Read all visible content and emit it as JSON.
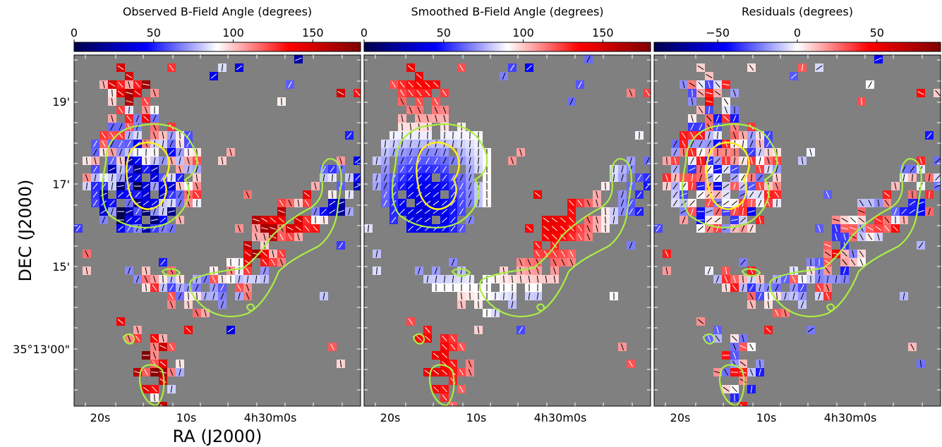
{
  "figure": {
    "y_axis_title": "DEC (J2000)",
    "x_axis_title": "RA (J2000)",
    "background_color": "#808080",
    "contour_colors": {
      "outer": "#aaee44",
      "inner": "#ffee22"
    },
    "x_tick_labels": [
      "20s",
      "10s",
      "4h30m0s"
    ],
    "y_tick_labels": [
      "19'",
      "17'",
      "15'",
      "35°13'00\""
    ]
  },
  "chart_data": [
    {
      "type": "heatmap",
      "title": "Observed B-Field Angle (degrees)",
      "colormap": "seismic",
      "colorbar_range": [
        0,
        180
      ],
      "colorbar_ticks": [
        0,
        50,
        100,
        150
      ],
      "colorbar_tick_labels": [
        "0",
        "50",
        "100",
        "150"
      ]
    },
    {
      "type": "heatmap",
      "title": "Smoothed B-Field Angle (degrees)",
      "colormap": "seismic",
      "colorbar_range": [
        0,
        180
      ],
      "colorbar_ticks": [
        0,
        50,
        100,
        150
      ],
      "colorbar_tick_labels": [
        "0",
        "50",
        "100",
        "150"
      ]
    },
    {
      "type": "heatmap",
      "title": "Residuals (degrees)",
      "colormap": "seismic",
      "colorbar_range": [
        -90,
        90
      ],
      "colorbar_ticks": [
        -50,
        0,
        50
      ],
      "colorbar_tick_labels": [
        "−50",
        "0",
        "50"
      ]
    }
  ]
}
